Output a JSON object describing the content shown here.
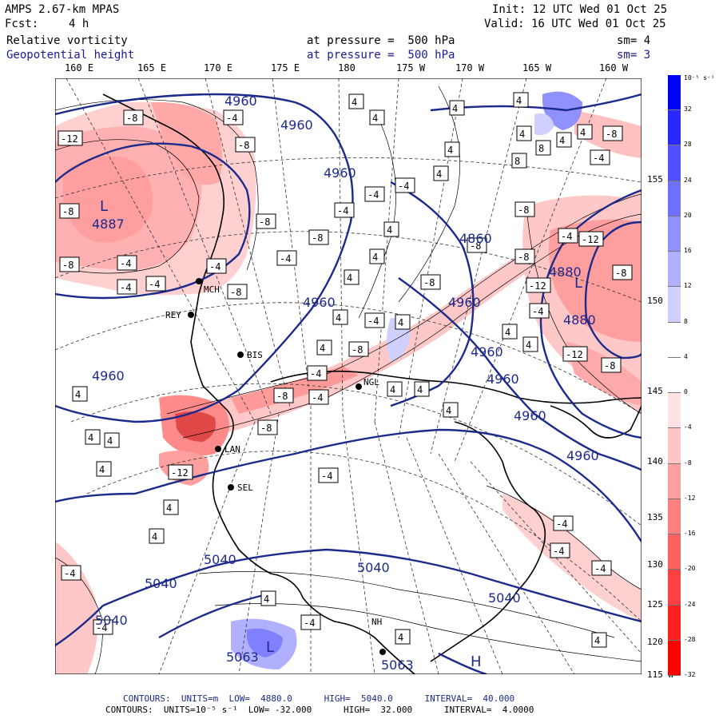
{
  "header": {
    "model": "AMPS 2.67-km MPAS",
    "fcst_label": "Fcst:",
    "fcst_value": "4 h",
    "init": "Init: 12 UTC Wed 01 Oct 25",
    "valid": "Valid: 16 UTC Wed 01 Oct 25",
    "field1_name": "Relative vorticity",
    "field1_level": "at pressure =  500 hPa",
    "field1_sm": "sm= 4",
    "field2_name": "Geopotential height",
    "field2_level": "at pressure =  500 hPa",
    "field2_sm": "sm= 3"
  },
  "longitudes": [
    "160 E",
    "165 E",
    "170 E",
    "175 E",
    "180",
    "175 W",
    "170 W",
    "165 W",
    "160 W"
  ],
  "latitudes": [
    "155 W",
    "150 W",
    "145 W",
    "140 W",
    "135 W",
    "130 W",
    "125 W",
    "120 W",
    "115 W"
  ],
  "colorbar": {
    "unit": "10⁻⁵ s⁻¹",
    "ticks": [
      "32",
      "28",
      "24",
      "20",
      "16",
      "12",
      "8",
      "4",
      "0",
      "-4",
      "-8",
      "-12",
      "-16",
      "-20",
      "-24",
      "-28",
      "-32"
    ],
    "colors": [
      "#0000ff",
      "#2828ff",
      "#5050ff",
      "#7070ff",
      "#9090ff",
      "#b0b0ff",
      "#d0d0ff",
      "#ffffff",
      "#ffffff",
      "#ffe2e2",
      "#ffc4c4",
      "#ffa0a0",
      "#ff8080",
      "#ff6060",
      "#ff4040",
      "#ff2020",
      "#ff0000"
    ]
  },
  "height_labels": [
    "4960",
    "4960",
    "4960",
    "4887",
    "4960",
    "4960",
    "4860",
    "4960",
    "4960",
    "4880",
    "4880",
    "4960",
    "4960",
    "4960",
    "5040",
    "5040",
    "5040",
    "5040",
    "5040",
    "5063",
    "5063"
  ],
  "low_labels": [
    "L",
    "L",
    "L"
  ],
  "high_labels": [
    "H"
  ],
  "stations": [
    "BIS",
    "NGL",
    "LAN",
    "SEL",
    "REY",
    "MCH",
    "NH"
  ],
  "footer": {
    "line1": "CONTOURS:  UNITS=m  LOW=  4880.0      HIGH=  5040.0      INTERVAL=  40.000",
    "line2": "CONTOURS:  UNITS=10⁻⁵ s⁻¹  LOW= -32.000      HIGH=  32.000      INTERVAL=  4.0000"
  }
}
